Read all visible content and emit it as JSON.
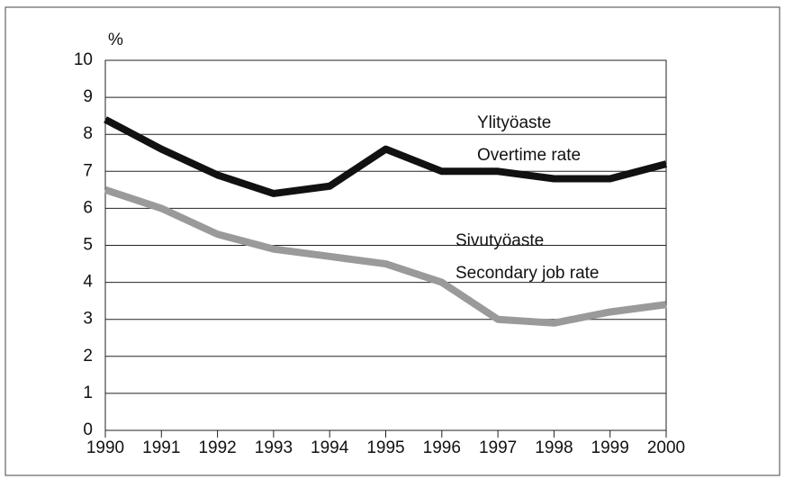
{
  "chart_data": {
    "type": "line",
    "ylabel": "%",
    "x": [
      1990,
      1991,
      1992,
      1993,
      1994,
      1995,
      1996,
      1997,
      1998,
      1999,
      2000
    ],
    "xlim": [
      1990,
      2000
    ],
    "xticks": [
      1990,
      1991,
      1992,
      1993,
      1994,
      1995,
      1996,
      1997,
      1998,
      1999,
      2000
    ],
    "ylim": [
      0,
      10
    ],
    "yticks": [
      0,
      1,
      2,
      3,
      4,
      5,
      6,
      7,
      8,
      9,
      10
    ],
    "grid": true,
    "series": [
      {
        "name": [
          "Ylityöaste",
          "Overtime rate"
        ],
        "color": "#111111",
        "values": [
          8.4,
          7.6,
          6.9,
          6.4,
          6.6,
          7.6,
          7.0,
          7.0,
          6.8,
          6.8,
          7.2
        ]
      },
      {
        "name": [
          "Sivutyöaste",
          "Secondary job rate"
        ],
        "color": "#9a9a9a",
        "values": [
          6.5,
          6.0,
          5.3,
          4.9,
          4.7,
          4.5,
          4.0,
          3.0,
          2.9,
          3.2,
          3.4
        ]
      }
    ]
  }
}
